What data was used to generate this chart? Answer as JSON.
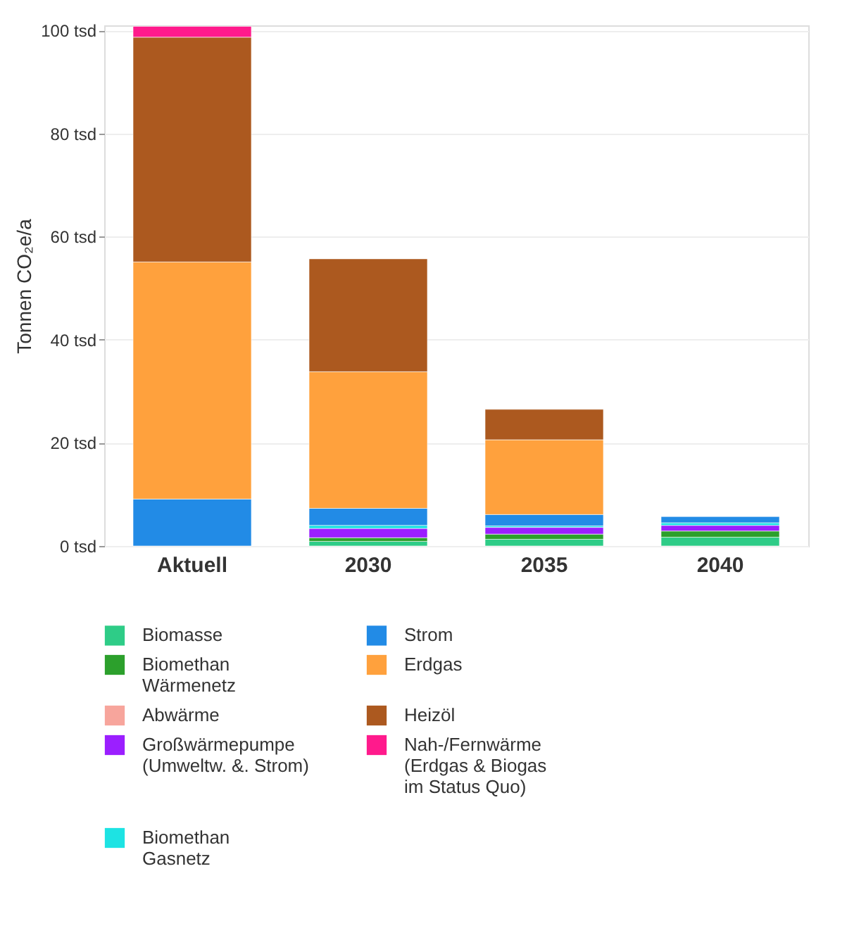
{
  "chart_data": {
    "type": "bar",
    "stacked": true,
    "ylabel": "Tonnen CO₂e/a",
    "categories": [
      "Aktuell",
      "2030",
      "2035",
      "2040"
    ],
    "series": [
      {
        "name": "Biomasse",
        "color": "#2ecc87",
        "values": [
          0,
          0.9,
          1.3,
          1.7
        ]
      },
      {
        "name": "Biomethan\nWärmenetz",
        "color": "#2ca02c",
        "values": [
          0,
          0.7,
          1.0,
          1.2
        ]
      },
      {
        "name": "Abwärme",
        "color": "#f7a59c",
        "values": [
          0,
          0,
          0,
          0
        ]
      },
      {
        "name": "Großwärmepumpe\n(Umweltw. &. Strom)",
        "color": "#9b1fff",
        "values": [
          0,
          1.8,
          1.3,
          1.1
        ]
      },
      {
        "name": "Biomethan\nGasnetz",
        "color": "#1de3e3",
        "values": [
          0,
          0.6,
          0.3,
          0.5
        ]
      },
      {
        "name": "Strom",
        "color": "#228be6",
        "values": [
          9.1,
          3.3,
          2.2,
          1.2
        ]
      },
      {
        "name": "Erdgas",
        "color": "#ffa13d",
        "values": [
          46,
          26.5,
          14.5,
          0
        ]
      },
      {
        "name": "Heizöl",
        "color": "#ac591f",
        "values": [
          43.6,
          21.9,
          5.9,
          0
        ]
      },
      {
        "name": "Nah-/Fernwärme\n\n(Erdgas & Biogas\nim Status Quo)",
        "color": "#ff1a8c",
        "values": [
          2.1,
          0,
          0,
          0
        ]
      }
    ],
    "ylim": [
      0,
      101
    ],
    "yticks": [
      {
        "value": 0,
        "label": "0 tsd"
      },
      {
        "value": 20,
        "label": "20 tsd"
      },
      {
        "value": 40,
        "label": "40 tsd"
      },
      {
        "value": 60,
        "label": "60 tsd"
      },
      {
        "value": 80,
        "label": "80 tsd"
      },
      {
        "value": 100,
        "label": "100 tsd"
      }
    ],
    "grid": "y",
    "legend": "bottom"
  }
}
